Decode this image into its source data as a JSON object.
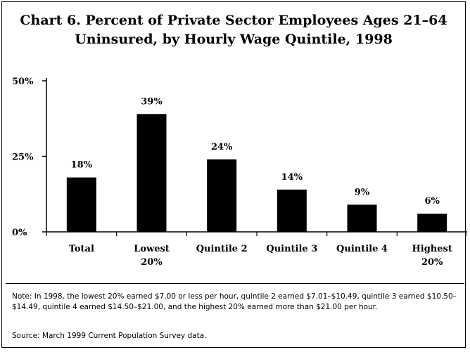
{
  "chart_data": {
    "type": "bar",
    "title_line1": "Chart 6. Percent of Private Sector Employees Ages 21–64",
    "title_line2": "Uninsured, by Hourly Wage Quintile, 1998",
    "categories": [
      [
        "Total"
      ],
      [
        "Lowest",
        "20%"
      ],
      [
        "Quintile 2"
      ],
      [
        "Quintile 3"
      ],
      [
        "Quintile 4"
      ],
      [
        "Highest",
        "20%"
      ]
    ],
    "values": [
      18,
      39,
      24,
      14,
      9,
      6
    ],
    "data_labels": [
      "18%",
      "39%",
      "24%",
      "14%",
      "9%",
      "6%"
    ],
    "ylim": [
      0,
      50
    ],
    "yticks": [
      0,
      25,
      50
    ],
    "ytick_labels": [
      "0%",
      "25%",
      "50%"
    ],
    "bar_color": "#000000",
    "grid": false,
    "legend": "none"
  },
  "note": "Note: In 1998, the lowest 20% earned $7.00 or less per hour, quintile 2 earned $7.01–$10.49, quintile 3 earned $10.50–$14.49, quintile 4 earned $14.50–$21.00, and the highest 20% earned more than $21.00 per hour.",
  "source": "Source: March 1999 Current Population Survey data."
}
